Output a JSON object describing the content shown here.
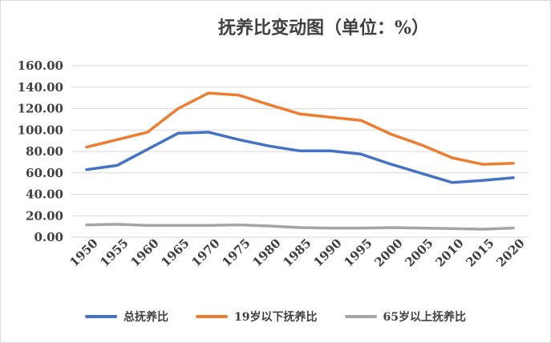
{
  "chart_data": {
    "type": "line",
    "title": "抚养比变动图（单位：%）",
    "xlabel": "",
    "ylabel": "",
    "x": [
      "1950",
      "1955",
      "1960",
      "1965",
      "1970",
      "1975",
      "1980",
      "1985",
      "1990",
      "1995",
      "2000",
      "2005",
      "2010",
      "2015",
      "2020"
    ],
    "ylim": [
      0,
      160
    ],
    "yticks": [
      "0.00",
      "20.00",
      "40.00",
      "60.00",
      "80.00",
      "100.00",
      "120.00",
      "140.00",
      "160.00"
    ],
    "grid": true,
    "legend": "bottom",
    "series": [
      {
        "name": "总抚养比",
        "color": "#4472C4",
        "values": [
          63,
          67,
          82,
          97,
          98,
          91,
          85,
          80.5,
          80.5,
          77.5,
          68,
          59.5,
          51,
          53,
          55.5
        ]
      },
      {
        "name": "19岁以下抚养比",
        "color": "#ED7D31",
        "values": [
          84,
          91,
          98,
          120,
          134.5,
          132.5,
          123.5,
          115,
          112,
          109,
          96,
          86,
          74,
          68,
          69
        ]
      },
      {
        "name": "65岁以上抚养比",
        "color": "#A5A5A5",
        "values": [
          11.5,
          12,
          11,
          11,
          11,
          11.5,
          10.5,
          9,
          8.5,
          8.5,
          9,
          8.5,
          8,
          7.5,
          8.5
        ]
      }
    ]
  }
}
